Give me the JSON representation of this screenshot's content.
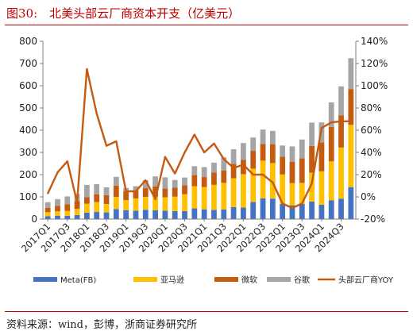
{
  "title": "图30:　北美头部云厂商资本开支（亿美元）",
  "source": "资料来源：wind，彭博，浙商证券研究所",
  "chart_data": {
    "type": "bar",
    "stacked": true,
    "categories": [
      "2017Q1",
      "2017Q2",
      "2017Q3",
      "2017Q4",
      "2018Q1",
      "2018Q2",
      "2018Q3",
      "2018Q4",
      "2019Q1",
      "2019Q2",
      "2019Q3",
      "2019Q4",
      "2020Q1",
      "2020Q2",
      "2020Q3",
      "2020Q4",
      "2021Q1",
      "2021Q2",
      "2021Q3",
      "2021Q4",
      "2022Q1",
      "2022Q2",
      "2022Q3",
      "2022Q4",
      "2023Q1",
      "2023Q2",
      "2023Q3",
      "2023Q4",
      "2024Q1",
      "2024Q2",
      "2024Q3",
      "2024Q4"
    ],
    "x_tick_labels": [
      "2017Q1",
      "2017Q3",
      "2018Q1",
      "2018Q3",
      "2019Q1",
      "2019Q3",
      "2020Q1",
      "2020Q3",
      "2021Q1",
      "2021Q3",
      "2022Q1",
      "2022Q3",
      "2023Q1",
      "2023Q3",
      "2024Q1",
      "2024Q3"
    ],
    "series": [
      {
        "name": "Meta(FB)",
        "color": "#4472c4",
        "axis": "left",
        "values": [
          13,
          15,
          15,
          18,
          29,
          32,
          30,
          45,
          40,
          38,
          42,
          40,
          38,
          36,
          36,
          48,
          44,
          41,
          43,
          54,
          52,
          77,
          93,
          92,
          68,
          62,
          68,
          79,
          65,
          85,
          92,
          144
        ]
      },
      {
        "name": "亚马逊",
        "color": "#ffc000",
        "axis": "left",
        "values": [
          18,
          20,
          22,
          28,
          40,
          45,
          38,
          55,
          45,
          55,
          58,
          62,
          60,
          65,
          76,
          100,
          100,
          113,
          120,
          130,
          150,
          150,
          170,
          160,
          133,
          100,
          95,
          130,
          150,
          175,
          230,
          280
        ]
      },
      {
        "name": "微软",
        "color": "#c55a11",
        "axis": "left",
        "values": [
          20,
          25,
          30,
          35,
          30,
          35,
          40,
          50,
          40,
          35,
          40,
          45,
          40,
          40,
          40,
          50,
          45,
          55,
          55,
          65,
          65,
          80,
          75,
          85,
          80,
          95,
          110,
          120,
          130,
          155,
          145,
          160
        ]
      },
      {
        "name": "谷歌",
        "color": "#a5a5a5",
        "axis": "left",
        "values": [
          25,
          30,
          35,
          32,
          55,
          45,
          35,
          40,
          15,
          20,
          35,
          45,
          50,
          35,
          35,
          40,
          45,
          45,
          60,
          65,
          75,
          60,
          65,
          60,
          50,
          70,
          85,
          105,
          90,
          110,
          130,
          140
        ]
      },
      {
        "name": "头部云厂商YOY",
        "color": "#c55a11",
        "type": "line",
        "axis": "right",
        "values": [
          3,
          22,
          32,
          -5,
          115,
          75,
          46,
          50,
          5,
          5,
          15,
          -2,
          36,
          21,
          40,
          56,
          40,
          48,
          34,
          26,
          29,
          20,
          20,
          13,
          -6,
          -10,
          -6,
          12,
          62,
          67,
          68,
          68
        ]
      }
    ],
    "ylim": [
      0,
      800
    ],
    "yticks": [
      0,
      100,
      200,
      300,
      400,
      500,
      600,
      700,
      800
    ],
    "y2lim": [
      -20,
      140
    ],
    "y2ticks": [
      "-20%",
      "0%",
      "20%",
      "40%",
      "60%",
      "80%",
      "100%",
      "120%",
      "140%"
    ],
    "legend": "bottom",
    "grid": false
  }
}
